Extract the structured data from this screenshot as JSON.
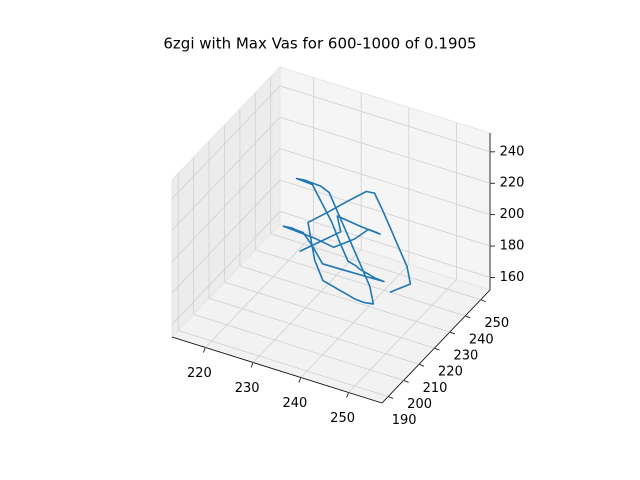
{
  "chart_data": {
    "type": "line3d",
    "title": "6zgi with Max Vas for 600-1000 of 0.1905",
    "color": "#1f77b4",
    "grid": true,
    "xlim": [
      213,
      257
    ],
    "ylim": [
      186,
      256
    ],
    "zlim": [
      152,
      252
    ],
    "xticks": [
      220,
      230,
      240,
      250
    ],
    "yticks": [
      190,
      200,
      210,
      220,
      230,
      240,
      250
    ],
    "zticks": [
      160,
      180,
      200,
      220,
      240
    ],
    "x": [
      232,
      235,
      238,
      236,
      240,
      243,
      241,
      238,
      236,
      233,
      230,
      228,
      226,
      229,
      231,
      234,
      237,
      240,
      244,
      247,
      249,
      246,
      243,
      240,
      238,
      235,
      232,
      229,
      226,
      223,
      221,
      224,
      227,
      230,
      233,
      236,
      239,
      242,
      245,
      248,
      250,
      247,
      244,
      241,
      238,
      235,
      232,
      229,
      227,
      225,
      228,
      231,
      234,
      237,
      240,
      243,
      246,
      249,
      251,
      248
    ],
    "y": [
      210,
      214,
      218,
      222,
      225,
      228,
      232,
      236,
      233,
      229,
      226,
      222,
      218,
      214,
      210,
      206,
      203,
      200,
      204,
      208,
      212,
      216,
      220,
      224,
      228,
      232,
      236,
      240,
      243,
      246,
      242,
      238,
      234,
      230,
      226,
      222,
      218,
      214,
      210,
      206,
      202,
      205,
      209,
      213,
      217,
      221,
      225,
      229,
      233,
      237,
      240,
      244,
      247,
      243,
      239,
      235,
      231,
      227,
      223,
      219
    ],
    "z": [
      200,
      205,
      210,
      214,
      208,
      203,
      198,
      193,
      188,
      184,
      190,
      196,
      202,
      208,
      213,
      218,
      215,
      210,
      205,
      200,
      195,
      190,
      186,
      182,
      178,
      174,
      179,
      185,
      191,
      197,
      203,
      209,
      214,
      219,
      222,
      217,
      212,
      207,
      202,
      197,
      192,
      187,
      182,
      178,
      174,
      170,
      166,
      172,
      178,
      184,
      190,
      196,
      202,
      208,
      204,
      199,
      194,
      189,
      184,
      180
    ]
  }
}
